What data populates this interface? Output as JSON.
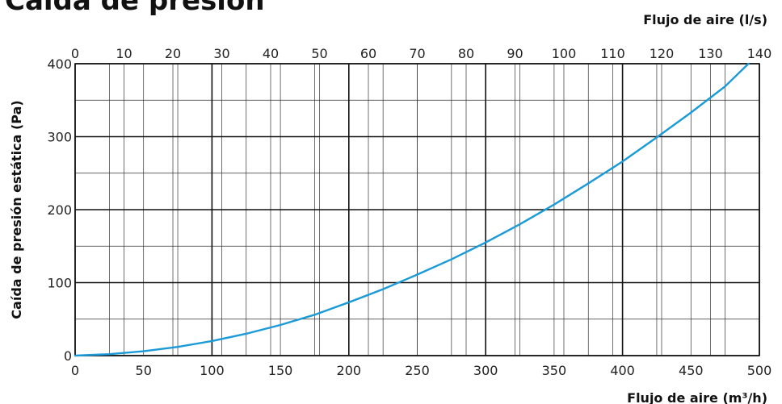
{
  "chart_data": {
    "type": "line",
    "title": "Caída de presión",
    "xlabel_bottom": "Flujo de aire (m³/h)",
    "xlabel_top": "Flujo de aire (l/s)",
    "ylabel": "Caída de presión estática (Pa)",
    "xlim": [
      0,
      500
    ],
    "ylim": [
      0,
      400
    ],
    "x2lim": [
      0,
      140
    ],
    "x_ticks": [
      0,
      50,
      100,
      150,
      200,
      250,
      300,
      350,
      400,
      450,
      500
    ],
    "x2_ticks": [
      0,
      10,
      20,
      30,
      40,
      50,
      60,
      70,
      80,
      90,
      100,
      110,
      120,
      130,
      140
    ],
    "y_ticks": [
      0,
      100,
      200,
      300,
      400
    ],
    "grid": true,
    "series": [
      {
        "x": [
          0,
          25,
          50,
          75,
          100,
          125,
          150,
          175,
          200,
          225,
          250,
          275,
          300,
          325,
          350,
          375,
          400,
          425,
          450,
          475,
          492
        ],
        "y": [
          0,
          2,
          6,
          12,
          20,
          30,
          42,
          56,
          73,
          91,
          111,
          132,
          155,
          180,
          207,
          236,
          266,
          299,
          333,
          369,
          400
        ],
        "color": "#1a9ad6"
      }
    ]
  }
}
